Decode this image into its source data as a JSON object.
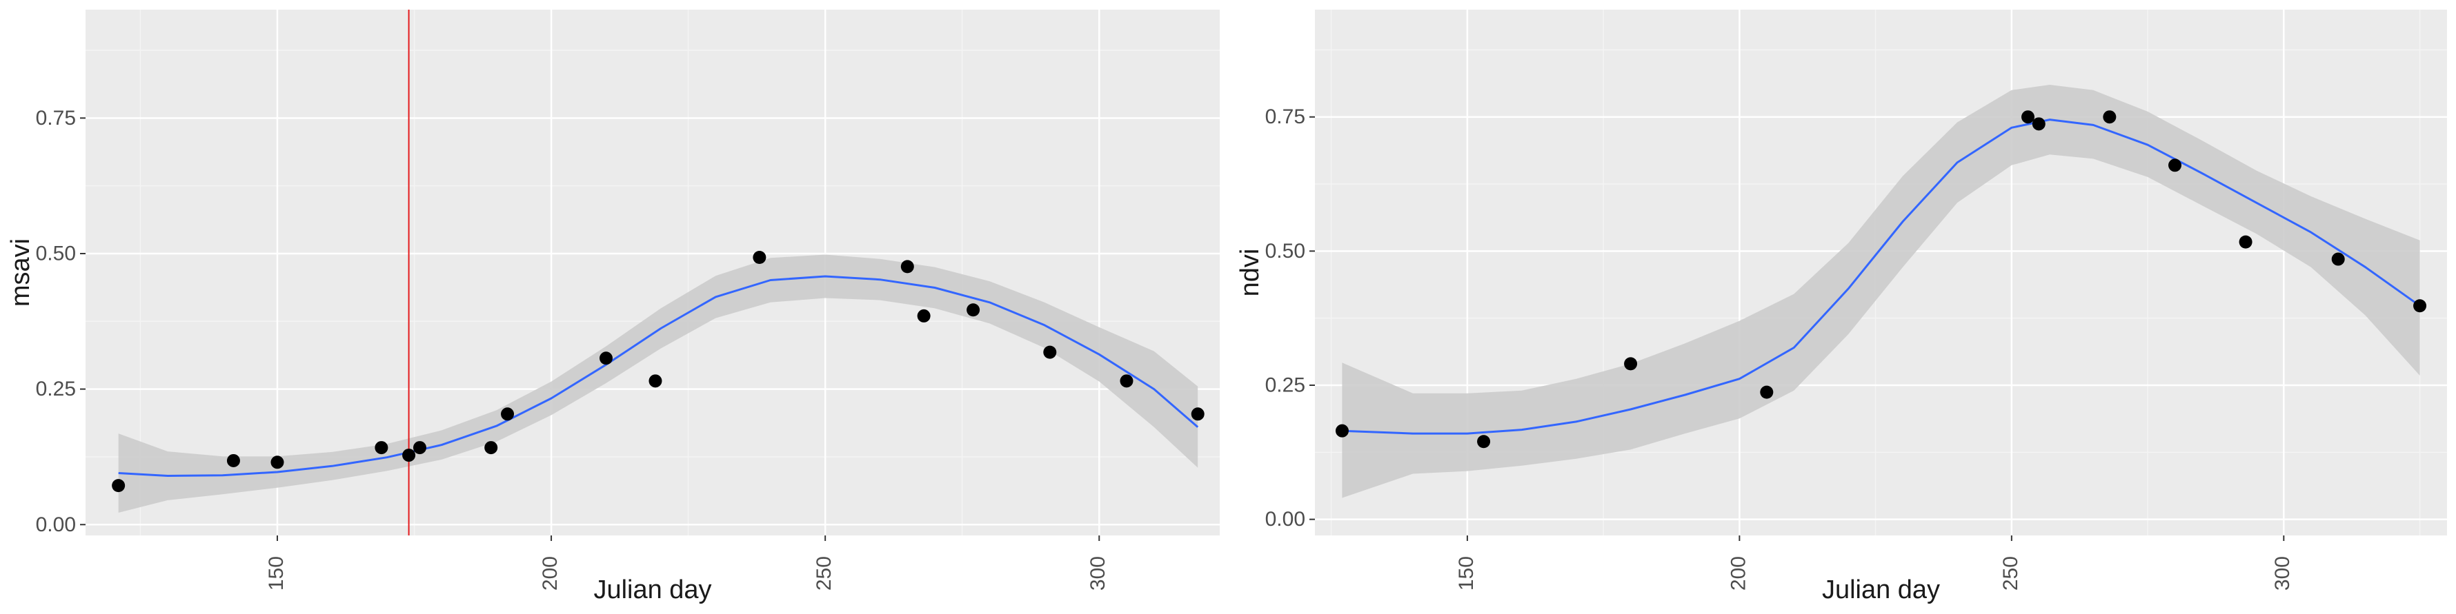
{
  "colors": {
    "panel_bg": "#ebebeb",
    "grid_major": "#ffffff",
    "grid_minor": "#f4f4f4",
    "ribbon": "#cccccc",
    "smooth_line": "#3366ff",
    "points": "#000000",
    "vline": "#e41a1c",
    "tick_text": "#4d4d4d",
    "axis_title": "#1a1a1a"
  },
  "chart_data": [
    {
      "type": "scatter",
      "xlabel": "Julian day",
      "ylabel": "msavi",
      "xlim": [
        115,
        322
      ],
      "ylim": [
        -0.02,
        0.95
      ],
      "x_ticks": [
        150,
        200,
        250,
        300
      ],
      "x_tick_labels": [
        "150",
        "200",
        "250",
        "300"
      ],
      "y_ticks": [
        0.0,
        0.25,
        0.5,
        0.75
      ],
      "y_tick_labels": [
        "0.00",
        "0.25",
        "0.50",
        "0.75"
      ],
      "grid": true,
      "vline_x": 174,
      "points": [
        {
          "x": 121,
          "y": 0.072
        },
        {
          "x": 142,
          "y": 0.118
        },
        {
          "x": 150,
          "y": 0.115
        },
        {
          "x": 169,
          "y": 0.142
        },
        {
          "x": 174,
          "y": 0.128
        },
        {
          "x": 176,
          "y": 0.142
        },
        {
          "x": 189,
          "y": 0.142
        },
        {
          "x": 192,
          "y": 0.204
        },
        {
          "x": 210,
          "y": 0.307
        },
        {
          "x": 219,
          "y": 0.265
        },
        {
          "x": 238,
          "y": 0.493
        },
        {
          "x": 265,
          "y": 0.476
        },
        {
          "x": 268,
          "y": 0.385
        },
        {
          "x": 277,
          "y": 0.396
        },
        {
          "x": 291,
          "y": 0.318
        },
        {
          "x": 305,
          "y": 0.265
        },
        {
          "x": 318,
          "y": 0.204
        }
      ],
      "smooth": [
        {
          "x": 121,
          "y": 0.095,
          "lo": 0.022,
          "hi": 0.168
        },
        {
          "x": 130,
          "y": 0.09,
          "lo": 0.045,
          "hi": 0.135
        },
        {
          "x": 140,
          "y": 0.091,
          "lo": 0.056,
          "hi": 0.126
        },
        {
          "x": 150,
          "y": 0.097,
          "lo": 0.068,
          "hi": 0.126
        },
        {
          "x": 160,
          "y": 0.108,
          "lo": 0.082,
          "hi": 0.134
        },
        {
          "x": 170,
          "y": 0.124,
          "lo": 0.099,
          "hi": 0.149
        },
        {
          "x": 180,
          "y": 0.147,
          "lo": 0.12,
          "hi": 0.174
        },
        {
          "x": 190,
          "y": 0.182,
          "lo": 0.153,
          "hi": 0.211
        },
        {
          "x": 200,
          "y": 0.233,
          "lo": 0.202,
          "hi": 0.264
        },
        {
          "x": 210,
          "y": 0.295,
          "lo": 0.261,
          "hi": 0.329
        },
        {
          "x": 220,
          "y": 0.362,
          "lo": 0.325,
          "hi": 0.399
        },
        {
          "x": 230,
          "y": 0.42,
          "lo": 0.381,
          "hi": 0.459
        },
        {
          "x": 240,
          "y": 0.451,
          "lo": 0.41,
          "hi": 0.492
        },
        {
          "x": 250,
          "y": 0.458,
          "lo": 0.418,
          "hi": 0.498
        },
        {
          "x": 260,
          "y": 0.452,
          "lo": 0.414,
          "hi": 0.49
        },
        {
          "x": 270,
          "y": 0.437,
          "lo": 0.399,
          "hi": 0.475
        },
        {
          "x": 280,
          "y": 0.41,
          "lo": 0.371,
          "hi": 0.449
        },
        {
          "x": 290,
          "y": 0.368,
          "lo": 0.326,
          "hi": 0.41
        },
        {
          "x": 300,
          "y": 0.314,
          "lo": 0.264,
          "hi": 0.364
        },
        {
          "x": 310,
          "y": 0.25,
          "lo": 0.18,
          "hi": 0.32
        },
        {
          "x": 318,
          "y": 0.18,
          "lo": 0.105,
          "hi": 0.255
        }
      ]
    },
    {
      "type": "scatter",
      "xlabel": "Julian day",
      "ylabel": "ndvi",
      "xlim": [
        122,
        330
      ],
      "ylim": [
        -0.03,
        0.95
      ],
      "x_ticks": [
        150,
        200,
        250,
        300
      ],
      "x_tick_labels": [
        "150",
        "200",
        "250",
        "300"
      ],
      "y_ticks": [
        0.0,
        0.25,
        0.5,
        0.75
      ],
      "y_tick_labels": [
        "0.00",
        "0.25",
        "0.50",
        "0.75"
      ],
      "grid": true,
      "points": [
        {
          "x": 127,
          "y": 0.165
        },
        {
          "x": 153,
          "y": 0.145
        },
        {
          "x": 180,
          "y": 0.29
        },
        {
          "x": 205,
          "y": 0.237
        },
        {
          "x": 253,
          "y": 0.75
        },
        {
          "x": 255,
          "y": 0.737
        },
        {
          "x": 268,
          "y": 0.75
        },
        {
          "x": 280,
          "y": 0.66
        },
        {
          "x": 293,
          "y": 0.517
        },
        {
          "x": 310,
          "y": 0.485
        },
        {
          "x": 325,
          "y": 0.398
        }
      ],
      "smooth": [
        {
          "x": 127,
          "y": 0.165,
          "lo": 0.04,
          "hi": 0.292
        },
        {
          "x": 140,
          "y": 0.16,
          "lo": 0.085,
          "hi": 0.235
        },
        {
          "x": 150,
          "y": 0.16,
          "lo": 0.09,
          "hi": 0.235
        },
        {
          "x": 160,
          "y": 0.167,
          "lo": 0.1,
          "hi": 0.24
        },
        {
          "x": 170,
          "y": 0.182,
          "lo": 0.113,
          "hi": 0.262
        },
        {
          "x": 180,
          "y": 0.205,
          "lo": 0.13,
          "hi": 0.29
        },
        {
          "x": 190,
          "y": 0.232,
          "lo": 0.16,
          "hi": 0.328
        },
        {
          "x": 200,
          "y": 0.262,
          "lo": 0.188,
          "hi": 0.37
        },
        {
          "x": 210,
          "y": 0.32,
          "lo": 0.24,
          "hi": 0.42
        },
        {
          "x": 220,
          "y": 0.43,
          "lo": 0.345,
          "hi": 0.515
        },
        {
          "x": 230,
          "y": 0.555,
          "lo": 0.47,
          "hi": 0.64
        },
        {
          "x": 240,
          "y": 0.665,
          "lo": 0.59,
          "hi": 0.74
        },
        {
          "x": 250,
          "y": 0.73,
          "lo": 0.66,
          "hi": 0.8
        },
        {
          "x": 257,
          "y": 0.745,
          "lo": 0.68,
          "hi": 0.81
        },
        {
          "x": 265,
          "y": 0.735,
          "lo": 0.672,
          "hi": 0.8
        },
        {
          "x": 275,
          "y": 0.698,
          "lo": 0.638,
          "hi": 0.76
        },
        {
          "x": 285,
          "y": 0.645,
          "lo": 0.585,
          "hi": 0.706
        },
        {
          "x": 295,
          "y": 0.59,
          "lo": 0.532,
          "hi": 0.65
        },
        {
          "x": 305,
          "y": 0.535,
          "lo": 0.47,
          "hi": 0.602
        },
        {
          "x": 315,
          "y": 0.47,
          "lo": 0.38,
          "hi": 0.56
        },
        {
          "x": 325,
          "y": 0.398,
          "lo": 0.268,
          "hi": 0.52
        }
      ]
    }
  ]
}
